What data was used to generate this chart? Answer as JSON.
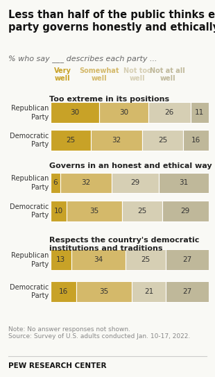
{
  "title": "Less than half of the public thinks either\nparty governs honestly and ethically",
  "subtitle": "% who say ___ describes each party ...",
  "legend_labels": [
    [
      "Very",
      "well"
    ],
    [
      "Somewhat",
      "well"
    ],
    [
      "Not too",
      "well"
    ],
    [
      "Not at all",
      "well"
    ]
  ],
  "colors": [
    "#c8a227",
    "#d4b96a",
    "#d6cfb4",
    "#bfb89a"
  ],
  "sections": [
    {
      "heading": "Too extreme in its positions",
      "bars": [
        {
          "label": "Republican\nParty",
          "values": [
            30,
            30,
            26,
            11
          ]
        },
        {
          "label": "Democratic\nParty",
          "values": [
            25,
            32,
            25,
            16
          ]
        }
      ]
    },
    {
      "heading": "Governs in an honest and ethical way",
      "bars": [
        {
          "label": "Republican\nParty",
          "values": [
            6,
            32,
            29,
            31
          ]
        },
        {
          "label": "Democratic\nParty",
          "values": [
            10,
            35,
            25,
            29
          ]
        }
      ]
    },
    {
      "heading": "Respects the country's democratic\ninstitutions and traditions",
      "bars": [
        {
          "label": "Republican\nParty",
          "values": [
            13,
            34,
            25,
            27
          ]
        },
        {
          "label": "Democratic\nParty",
          "values": [
            16,
            35,
            21,
            27
          ]
        }
      ]
    }
  ],
  "note": "Note: No answer responses not shown.\nSource: Survey of U.S. adults conducted Jan. 10-17, 2022.",
  "footer": "PEW RESEARCH CENTER",
  "bg_color": "#f9f9f5",
  "title_fontsize": 10.5,
  "subtitle_fontsize": 8,
  "heading_fontsize": 8,
  "label_fontsize": 7,
  "value_fontsize": 7.5,
  "note_fontsize": 6.5,
  "footer_fontsize": 7.5,
  "legend_fontsize": 7
}
